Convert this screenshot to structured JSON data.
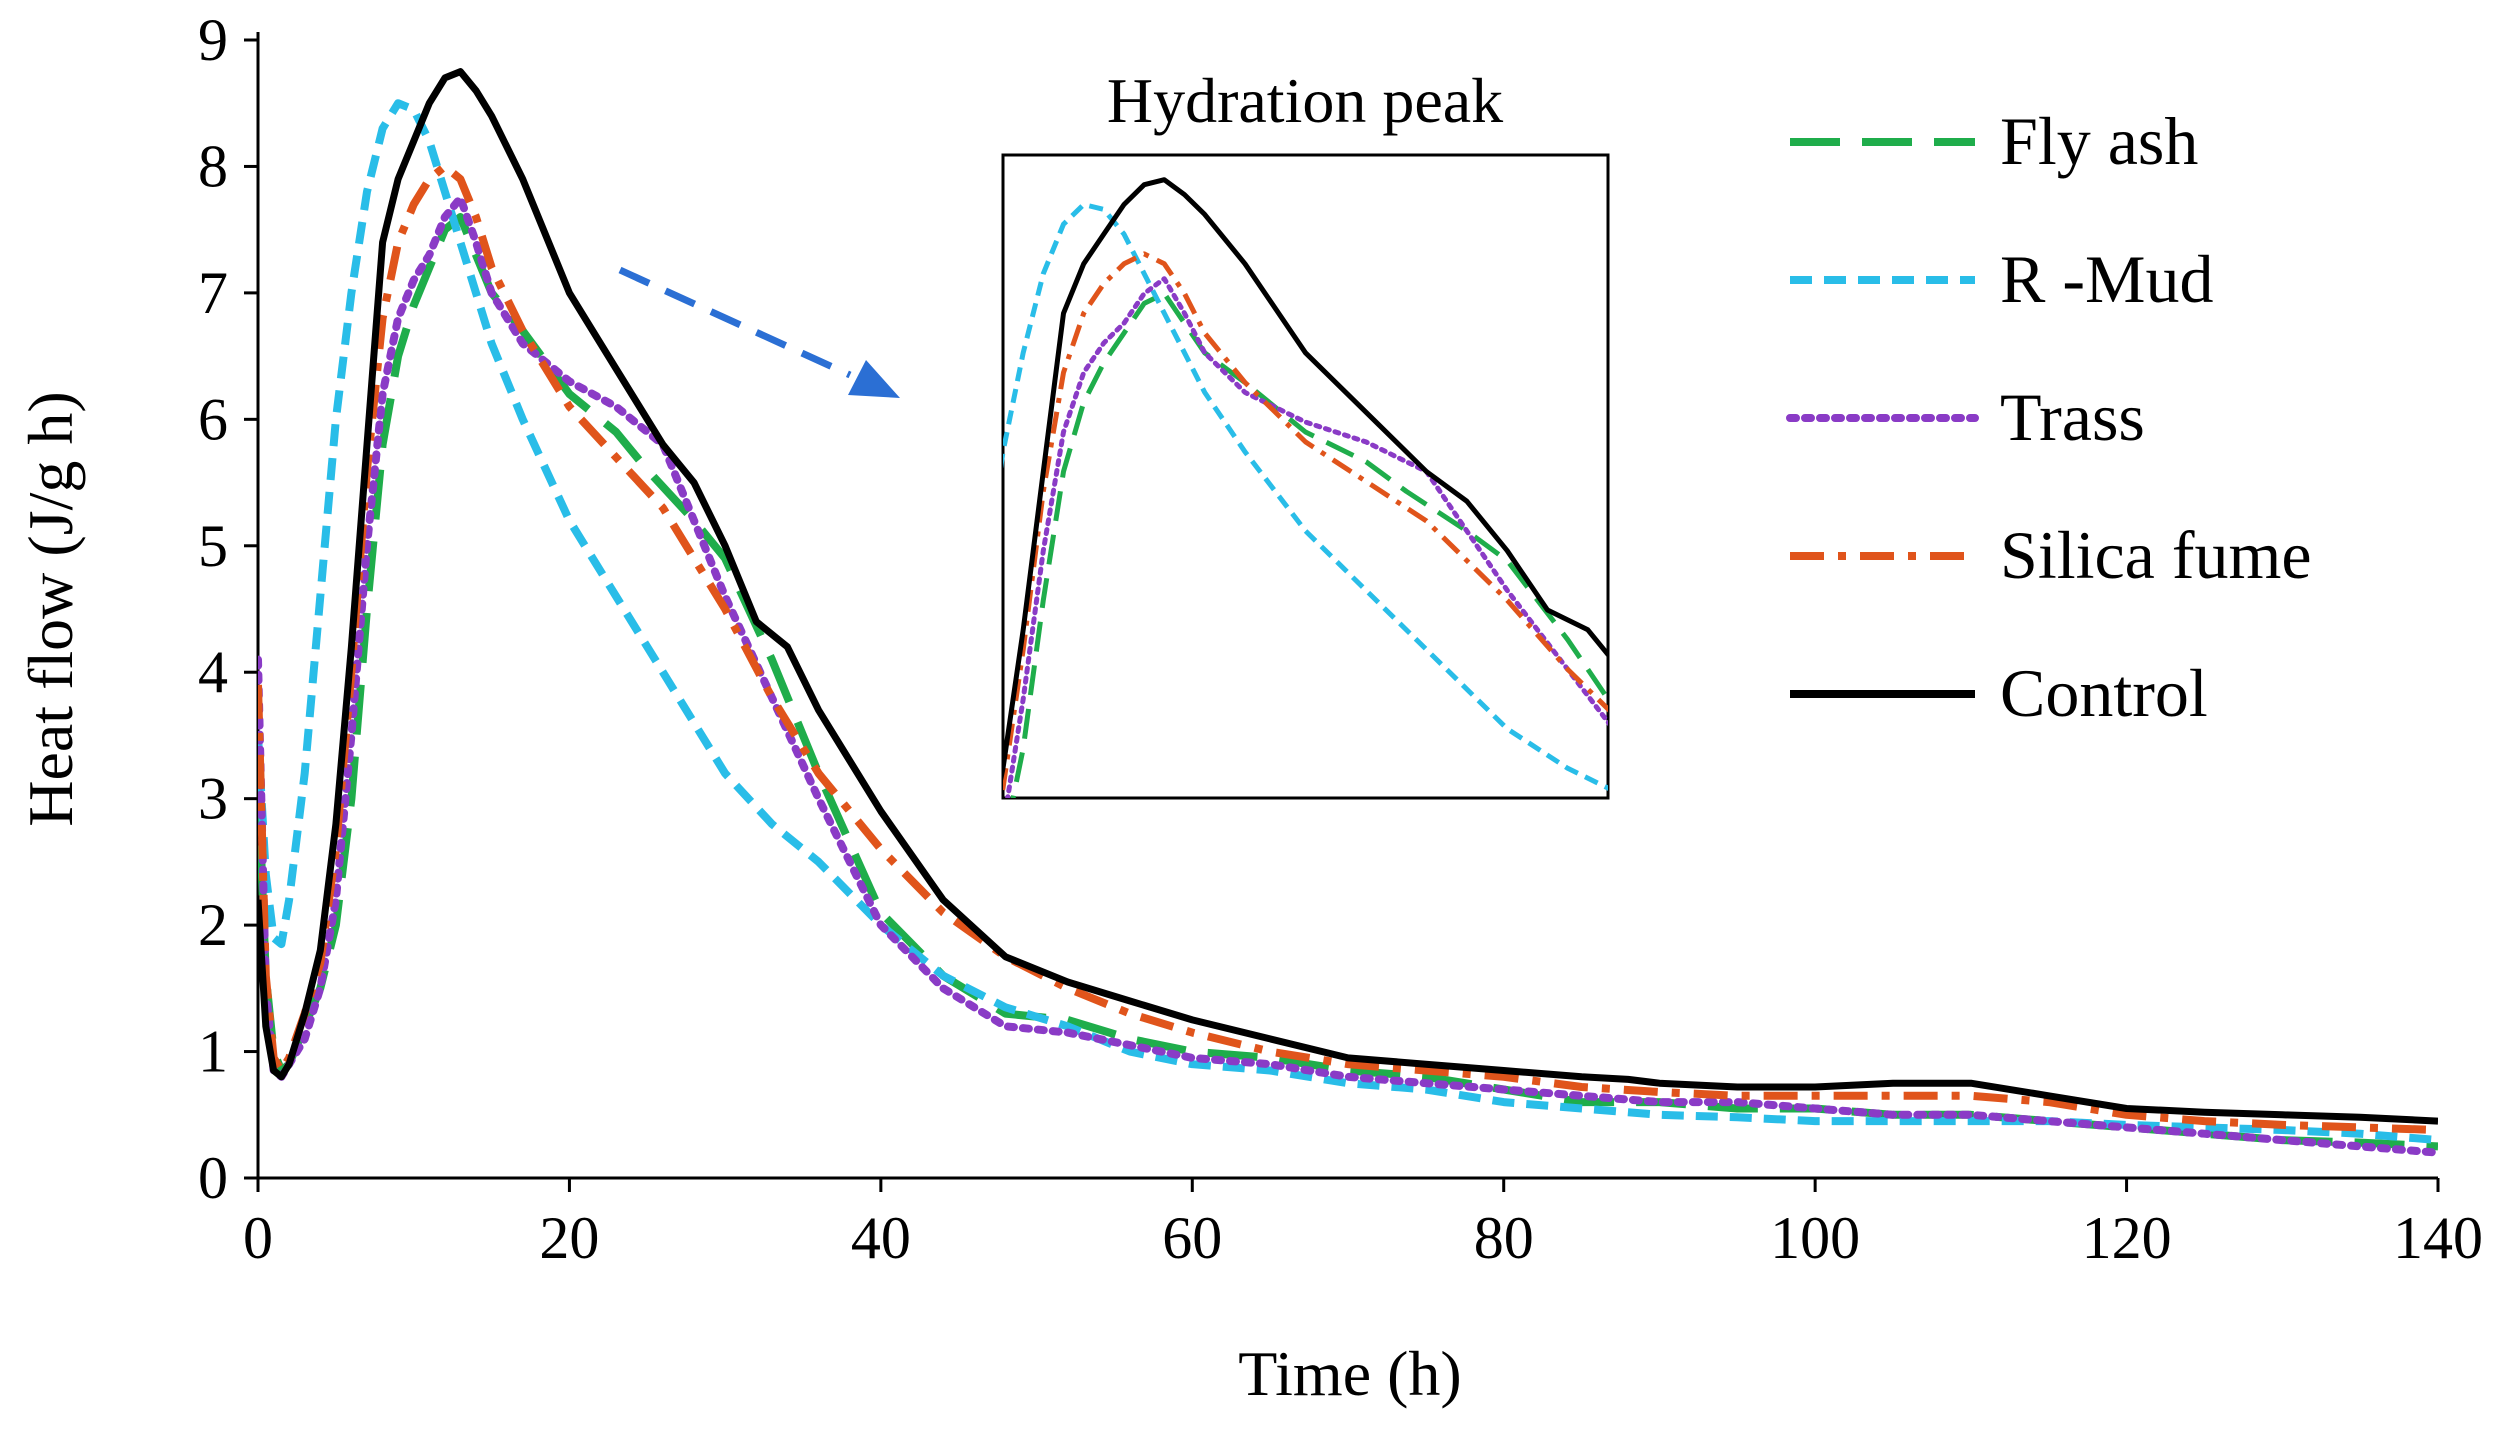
{
  "chart_data": {
    "type": "line",
    "title": "",
    "xlabel": "Time (h)",
    "ylabel": "Heat flow (J/g h)",
    "xlim": [
      0,
      140
    ],
    "ylim": [
      0,
      9
    ],
    "xticks": [
      "0",
      "20",
      "40",
      "60",
      "80",
      "100",
      "120",
      "140"
    ],
    "yticks": [
      "0",
      "1",
      "2",
      "3",
      "4",
      "5",
      "6",
      "7",
      "8",
      "9"
    ],
    "grid": false,
    "legend_position": "top-right",
    "inset": {
      "title": "Hydration peak",
      "xlim": [
        5,
        35
      ],
      "ylim": [
        2.5,
        9
      ]
    },
    "series": [
      {
        "name": "Fly ash",
        "color": "#1fad4b",
        "style": "long-dash",
        "x": [
          0,
          0.5,
          1,
          1.5,
          2,
          3,
          4,
          5,
          6,
          7,
          8,
          9,
          10,
          11,
          12,
          13,
          14,
          15,
          17,
          20,
          23,
          25,
          28,
          30,
          33,
          36,
          40,
          44,
          48,
          52,
          56,
          60,
          65,
          70,
          75,
          80,
          85,
          90,
          95,
          100,
          105,
          110,
          115,
          120,
          125,
          130,
          135,
          140
        ],
        "y": [
          3.2,
          1.6,
          1.0,
          0.85,
          0.9,
          1.2,
          1.5,
          2.0,
          3.0,
          4.5,
          5.8,
          6.5,
          6.9,
          7.2,
          7.5,
          7.6,
          7.3,
          7.0,
          6.7,
          6.2,
          5.9,
          5.6,
          5.2,
          4.9,
          4.1,
          3.2,
          2.1,
          1.6,
          1.3,
          1.25,
          1.1,
          1.0,
          0.95,
          0.85,
          0.8,
          0.7,
          0.6,
          0.6,
          0.55,
          0.55,
          0.5,
          0.5,
          0.45,
          0.4,
          0.35,
          0.3,
          0.28,
          0.25
        ]
      },
      {
        "name": "R -Mud",
        "color": "#29bde8",
        "style": "short-dash",
        "x": [
          0,
          0.5,
          1,
          1.5,
          2,
          3,
          4,
          5,
          6,
          7,
          8,
          9,
          10,
          11,
          12,
          13,
          14,
          15,
          17,
          20,
          23,
          26,
          30,
          33,
          36,
          40,
          44,
          48,
          52,
          56,
          60,
          65,
          70,
          75,
          80,
          85,
          90,
          95,
          100,
          105,
          110,
          115,
          120,
          125,
          130,
          135,
          140
        ],
        "y": [
          3.5,
          2.4,
          1.9,
          1.85,
          2.2,
          3.2,
          4.6,
          6.0,
          7.0,
          7.8,
          8.3,
          8.5,
          8.45,
          8.2,
          7.8,
          7.4,
          7.0,
          6.6,
          6.0,
          5.2,
          4.6,
          4.0,
          3.2,
          2.8,
          2.5,
          2.0,
          1.6,
          1.35,
          1.2,
          1.0,
          0.9,
          0.85,
          0.75,
          0.7,
          0.6,
          0.55,
          0.5,
          0.48,
          0.45,
          0.45,
          0.45,
          0.45,
          0.42,
          0.4,
          0.38,
          0.35,
          0.3
        ]
      },
      {
        "name": "Trass",
        "color": "#8a3bc6",
        "style": "dotted",
        "x": [
          0,
          0.5,
          1,
          1.5,
          2,
          3,
          4,
          5,
          6,
          7,
          8,
          9,
          10,
          11,
          12,
          13,
          14,
          15,
          17,
          20,
          23,
          26,
          28,
          30,
          33,
          36,
          40,
          44,
          48,
          52,
          56,
          60,
          65,
          70,
          75,
          80,
          85,
          90,
          95,
          100,
          105,
          110,
          115,
          120,
          125,
          130,
          135,
          140
        ],
        "y": [
          4.1,
          1.5,
          0.85,
          0.8,
          0.9,
          1.1,
          1.5,
          2.2,
          3.5,
          5.0,
          6.2,
          6.8,
          7.1,
          7.3,
          7.6,
          7.75,
          7.4,
          7.0,
          6.6,
          6.3,
          6.1,
          5.8,
          5.2,
          4.6,
          3.8,
          3.0,
          2.0,
          1.5,
          1.2,
          1.15,
          1.05,
          0.95,
          0.9,
          0.8,
          0.75,
          0.7,
          0.65,
          0.6,
          0.6,
          0.55,
          0.5,
          0.5,
          0.45,
          0.4,
          0.35,
          0.3,
          0.25,
          0.2
        ]
      },
      {
        "name": "Silica fume",
        "color": "#e0541b",
        "style": "dash-dot",
        "x": [
          0,
          0.5,
          1,
          1.5,
          2,
          3,
          4,
          5,
          6,
          7,
          8,
          9,
          10,
          11,
          12,
          13,
          14,
          15,
          17,
          20,
          23,
          26,
          30,
          33,
          36,
          40,
          44,
          48,
          52,
          56,
          60,
          65,
          70,
          75,
          80,
          85,
          90,
          95,
          100,
          105,
          110,
          115,
          120,
          125,
          130,
          135,
          140
        ],
        "y": [
          3.9,
          1.6,
          0.95,
          0.85,
          0.95,
          1.3,
          1.7,
          2.6,
          4.0,
          5.6,
          6.8,
          7.4,
          7.7,
          7.9,
          8.0,
          7.9,
          7.6,
          7.2,
          6.7,
          6.1,
          5.7,
          5.3,
          4.5,
          3.8,
          3.2,
          2.6,
          2.1,
          1.75,
          1.5,
          1.3,
          1.15,
          1.0,
          0.9,
          0.85,
          0.8,
          0.72,
          0.68,
          0.65,
          0.65,
          0.65,
          0.65,
          0.6,
          0.5,
          0.45,
          0.42,
          0.4,
          0.38
        ]
      },
      {
        "name": "Control",
        "color": "#000000",
        "style": "solid",
        "x": [
          0,
          0.5,
          1,
          1.5,
          2,
          3,
          4,
          5,
          6,
          7,
          8,
          9,
          10,
          11,
          12,
          13,
          14,
          15,
          17,
          20,
          23,
          26,
          28,
          30,
          32,
          34,
          36,
          40,
          44,
          48,
          52,
          56,
          60,
          65,
          70,
          75,
          80,
          85,
          88,
          90,
          95,
          100,
          105,
          110,
          115,
          120,
          125,
          130,
          135,
          140
        ],
        "y": [
          2.2,
          1.2,
          0.85,
          0.8,
          0.9,
          1.3,
          1.8,
          2.8,
          4.2,
          5.8,
          7.4,
          7.9,
          8.2,
          8.5,
          8.7,
          8.75,
          8.6,
          8.4,
          7.9,
          7.0,
          6.4,
          5.8,
          5.5,
          5.0,
          4.4,
          4.2,
          3.7,
          2.9,
          2.2,
          1.75,
          1.55,
          1.4,
          1.25,
          1.1,
          0.95,
          0.9,
          0.85,
          0.8,
          0.78,
          0.75,
          0.72,
          0.72,
          0.75,
          0.75,
          0.65,
          0.55,
          0.52,
          0.5,
          0.48,
          0.45
        ]
      }
    ]
  }
}
